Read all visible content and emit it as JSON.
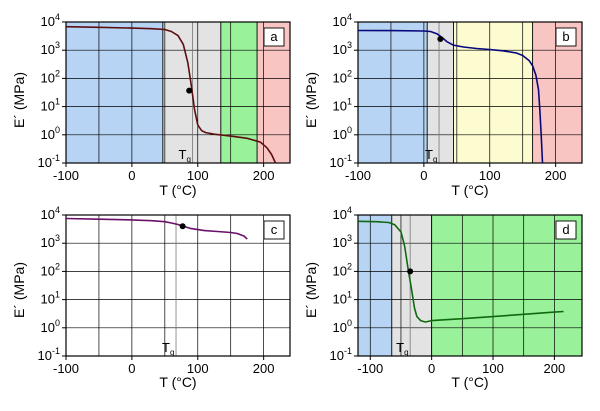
{
  "chart_data": [
    {
      "panel": "a",
      "type": "line",
      "xlabel": "T (°C)",
      "ylabel": "E´ (MPa)",
      "ylog": true,
      "xlim": [
        -100,
        240
      ],
      "ylim_exponents": [
        -1,
        4
      ],
      "x_ticks": [
        -100,
        0,
        100,
        200
      ],
      "y_ticks": [
        -1,
        0,
        1,
        2,
        3,
        4
      ],
      "tg_label": {
        "main": "T",
        "sub": "g"
      },
      "tg_value": 92,
      "regions": [
        {
          "from": -100,
          "to": 47,
          "color": "#b7d4f4"
        },
        {
          "from": 47,
          "to": 135,
          "color": "#e3e3e3"
        },
        {
          "from": 135,
          "to": 190,
          "color": "#99f29a"
        },
        {
          "from": 190,
          "to": 240,
          "color": "#f9c5c2"
        }
      ],
      "series": [
        {
          "color": "#5c0f0f",
          "x": [
            -100,
            -50,
            0,
            30,
            50,
            60,
            70,
            78,
            85,
            90,
            95,
            100,
            106,
            112,
            125,
            150,
            175,
            195,
            205,
            212,
            218
          ],
          "y": [
            6800,
            6500,
            6100,
            5800,
            5400,
            4600,
            3300,
            1600,
            350,
            60,
            8,
            2.2,
            1.4,
            1.2,
            1.05,
            0.9,
            0.75,
            0.55,
            0.35,
            0.2,
            0.1
          ]
        }
      ],
      "marker": {
        "x": 87,
        "y": 37
      }
    },
    {
      "panel": "b",
      "type": "line",
      "xlabel": "T (°C)",
      "ylabel": "E´ (MPa)",
      "ylog": true,
      "xlim": [
        -100,
        240
      ],
      "ylim_exponents": [
        -1,
        4
      ],
      "x_ticks": [
        -100,
        0,
        100,
        200
      ],
      "y_ticks": [
        -1,
        0,
        1,
        2,
        3,
        4
      ],
      "tg_label": {
        "main": "T",
        "sub": "g"
      },
      "tg_value": 23,
      "regions": [
        {
          "from": -100,
          "to": 5,
          "color": "#b7d4f4"
        },
        {
          "from": 5,
          "to": 45,
          "color": "#e3e3e3"
        },
        {
          "from": 45,
          "to": 165,
          "color": "#fdfbd0"
        },
        {
          "from": 165,
          "to": 240,
          "color": "#f9c5c2"
        }
      ],
      "series": [
        {
          "color": "#08087a",
          "x": [
            -100,
            -50,
            0,
            10,
            20,
            28,
            35,
            45,
            60,
            80,
            100,
            120,
            140,
            150,
            160,
            165,
            170,
            174,
            176,
            178,
            180
          ],
          "y": [
            5000,
            4950,
            4800,
            4600,
            3800,
            2800,
            2000,
            1500,
            1300,
            1150,
            1050,
            950,
            800,
            650,
            420,
            280,
            130,
            40,
            8,
            1,
            0.1
          ]
        }
      ],
      "marker": {
        "x": 25,
        "y": 2500
      }
    },
    {
      "panel": "c",
      "type": "line",
      "xlabel": "T (°C)",
      "ylabel": "E´ (MPa)",
      "ylog": true,
      "xlim": [
        -100,
        240
      ],
      "ylim_exponents": [
        -1,
        4
      ],
      "x_ticks": [
        -100,
        0,
        100,
        200
      ],
      "y_ticks": [
        -1,
        0,
        1,
        2,
        3,
        4
      ],
      "tg_label": {
        "main": "T",
        "sub": "g"
      },
      "tg_value": 67,
      "regions": [],
      "series": [
        {
          "color": "#6a0f6a",
          "x": [
            -100,
            -50,
            0,
            30,
            50,
            60,
            70,
            78,
            90,
            110,
            130,
            150,
            160,
            170,
            175
          ],
          "y": [
            7500,
            7100,
            6700,
            6300,
            5800,
            5200,
            4600,
            4000,
            3300,
            2800,
            2600,
            2400,
            2200,
            1800,
            1400
          ]
        }
      ],
      "marker": {
        "x": 77,
        "y": 4000
      }
    },
    {
      "panel": "d",
      "type": "line",
      "xlabel": "T (°C)",
      "ylabel": "E´ (MPa)",
      "ylog": true,
      "xlim": [
        -120,
        245
      ],
      "ylim_exponents": [
        -1,
        4
      ],
      "x_ticks": [
        -100,
        0,
        100,
        200
      ],
      "y_ticks": [
        -1,
        0,
        1,
        2,
        3,
        4
      ],
      "tg_label": {
        "main": "T",
        "sub": "g"
      },
      "tg_value": -35,
      "regions": [
        {
          "from": -120,
          "to": -65,
          "color": "#b7d4f4"
        },
        {
          "from": -65,
          "to": 0,
          "color": "#e3e3e3"
        },
        {
          "from": 0,
          "to": 245,
          "color": "#99f29a"
        }
      ],
      "series": [
        {
          "color": "#0f6a0f",
          "x": [
            -120,
            -90,
            -70,
            -60,
            -50,
            -44,
            -38,
            -33,
            -28,
            -24,
            -18,
            -10,
            0,
            50,
            100,
            150,
            200,
            215
          ],
          "y": [
            6000,
            5800,
            5400,
            4500,
            2500,
            800,
            110,
            25,
            5,
            2.5,
            1.8,
            1.6,
            1.8,
            2.1,
            2.5,
            3,
            3.6,
            3.8
          ]
        }
      ],
      "marker": {
        "x": -35,
        "y": 100
      }
    }
  ]
}
